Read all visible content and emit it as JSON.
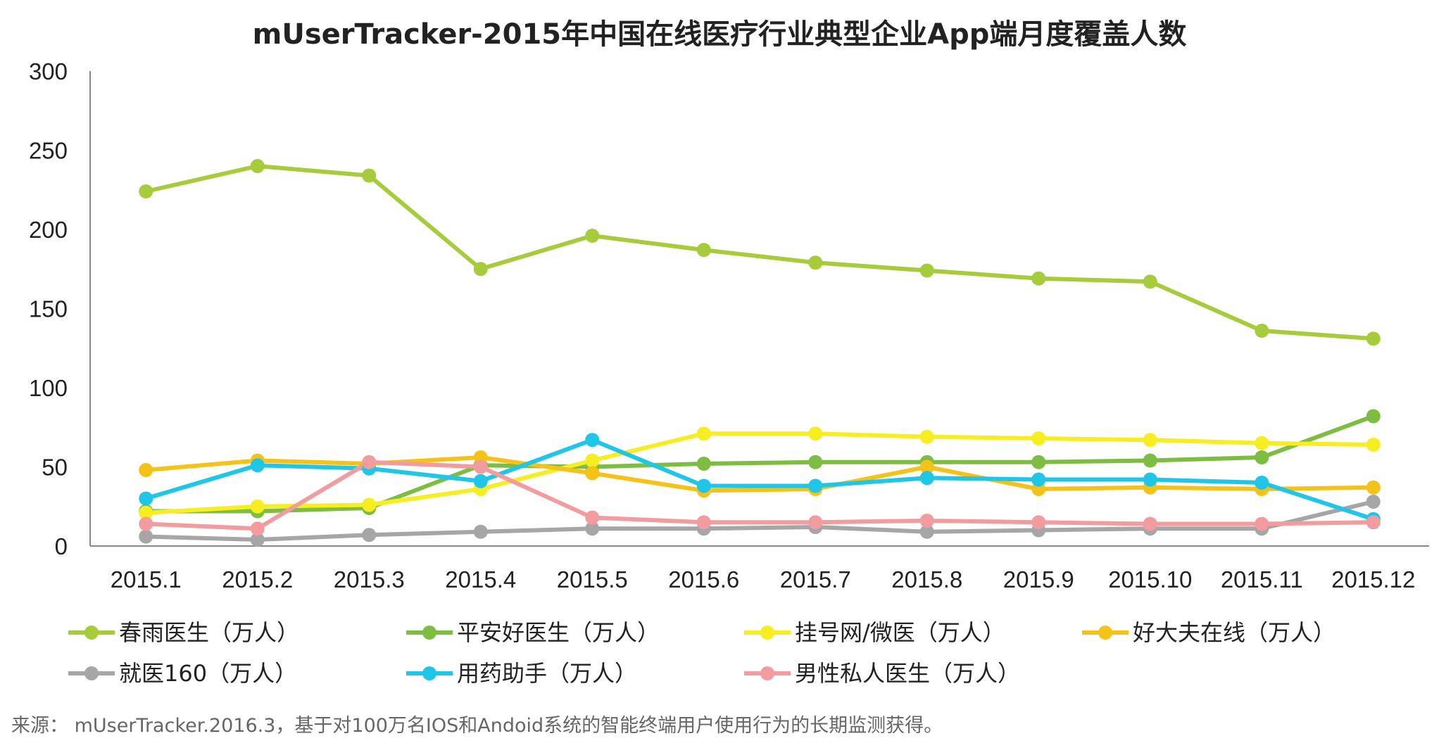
{
  "chart_data": {
    "type": "line",
    "title": "mUserTracker-2015年中国在线医疗行业典型企业App端月度覆盖人数",
    "xlabel": "",
    "ylabel": "",
    "ylim": [
      0,
      300
    ],
    "yticks": [
      "0",
      "50",
      "100",
      "150",
      "200",
      "250",
      "300"
    ],
    "categories": [
      "2015.1",
      "2015.2",
      "2015.3",
      "2015.4",
      "2015.5",
      "2015.6",
      "2015.7",
      "2015.8",
      "2015.9",
      "2015.10",
      "2015.11",
      "2015.12"
    ],
    "legend_position": "bottom",
    "series": [
      {
        "name": "春雨医生（万人）",
        "color": "#a6cb3b",
        "values": [
          224,
          240,
          234,
          175,
          196,
          187,
          179,
          174,
          169,
          167,
          136,
          131
        ]
      },
      {
        "name": "平安好医生（万人）",
        "color": "#7dbd42",
        "values": [
          22,
          22,
          24,
          51,
          50,
          52,
          53,
          53,
          53,
          54,
          56,
          82
        ]
      },
      {
        "name": "挂号网/微医（万人）",
        "color": "#f6ee20",
        "values": [
          21,
          25,
          26,
          36,
          54,
          71,
          71,
          69,
          68,
          67,
          65,
          64
        ]
      },
      {
        "name": "好大夫在线（万人）",
        "color": "#f5c218",
        "values": [
          48,
          54,
          52,
          56,
          46,
          35,
          36,
          50,
          36,
          37,
          36,
          37
        ]
      },
      {
        "name": "就医160（万人）",
        "color": "#a6a6a6",
        "values": [
          6,
          4,
          7,
          9,
          11,
          11,
          12,
          9,
          10,
          11,
          11,
          28
        ]
      },
      {
        "name": "用药助手（万人）",
        "color": "#1fc6e8",
        "values": [
          30,
          51,
          49,
          41,
          67,
          38,
          38,
          43,
          42,
          42,
          40,
          17
        ]
      },
      {
        "name": "男性私人医生（万人）",
        "color": "#f29c9f",
        "values": [
          14,
          11,
          53,
          50,
          18,
          15,
          15,
          16,
          15,
          14,
          14,
          15
        ]
      }
    ]
  },
  "source": "来源： mUserTracker.2016.3，基于对100万名IOS和Andoid系统的智能终端用户使用行为的长期监测获得。"
}
